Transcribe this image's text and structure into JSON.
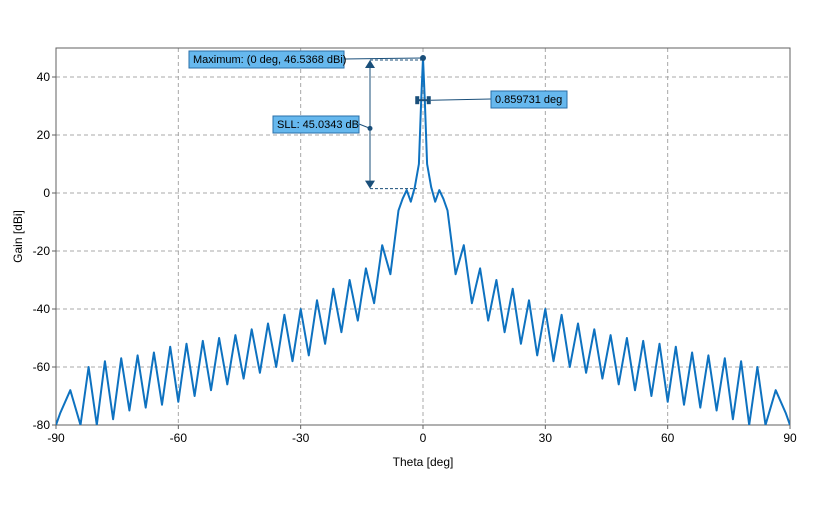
{
  "chart_data": {
    "type": "line",
    "title": "",
    "xlabel": "Theta [deg]",
    "ylabel": "Gain [dBi]",
    "xlim": [
      -90,
      90
    ],
    "ylim": [
      -80,
      50
    ],
    "xticks": [
      -90,
      -60,
      -30,
      0,
      30,
      60,
      90
    ],
    "yticks": [
      -80,
      -60,
      -40,
      -20,
      0,
      20,
      40
    ],
    "xtick_labels": [
      "-90",
      "-60",
      "-30",
      "0",
      "30",
      "60",
      "90"
    ],
    "ytick_labels": [
      "-80",
      "-60",
      "-40",
      "-20",
      "0",
      "20",
      "40"
    ],
    "grid": true,
    "line_color": "#0e72c0",
    "series": [
      {
        "x": [
          -90,
          -89,
          -86.5,
          -84,
          -82,
          -80,
          -78,
          -76,
          -74,
          -72,
          -70,
          -68,
          -66,
          -64,
          -62,
          -60,
          -58,
          -56,
          -54,
          -52,
          -50,
          -48,
          -46,
          -44,
          -42,
          -40,
          -38,
          -36,
          -34,
          -32,
          -30,
          -28,
          -26,
          -24,
          -22,
          -20,
          -18,
          -16,
          -14,
          -12,
          -10,
          -8,
          -6,
          -5,
          -4,
          -3,
          -2,
          -1,
          -0.43,
          0,
          0.43,
          1,
          2,
          3,
          4,
          5,
          6,
          8,
          10,
          12,
          14,
          16,
          18,
          20,
          22,
          24,
          26,
          28,
          30,
          32,
          34,
          36,
          38,
          40,
          42,
          44,
          46,
          48,
          50,
          52,
          54,
          56,
          58,
          60,
          62,
          64,
          66,
          68,
          70,
          72,
          74,
          76,
          78,
          80,
          82,
          84,
          86.5,
          89,
          90
        ],
        "values": [
          -80,
          -76,
          -68,
          -80,
          -60,
          -80,
          -58,
          -78,
          -57,
          -75,
          -56,
          -74,
          -55,
          -73,
          -53,
          -72,
          -52,
          -70,
          -51,
          -68,
          -50,
          -66,
          -49,
          -64,
          -47,
          -62,
          -45,
          -60,
          -42,
          -58,
          -40,
          -56,
          -37,
          -52,
          -33,
          -48,
          -30,
          -44,
          -26,
          -38,
          -18,
          -28,
          -6,
          -2,
          1,
          -3,
          2,
          10,
          32,
          46.5,
          32,
          10,
          2,
          -3,
          1,
          -2,
          -6,
          -28,
          -18,
          -38,
          -26,
          -44,
          -30,
          -48,
          -33,
          -52,
          -37,
          -56,
          -40,
          -58,
          -42,
          -60,
          -45,
          -62,
          -47,
          -64,
          -49,
          -66,
          -50,
          -68,
          -51,
          -70,
          -52,
          -72,
          -53,
          -73,
          -55,
          -74,
          -56,
          -75,
          -57,
          -78,
          -58,
          -80,
          -60,
          -80,
          -68,
          -76,
          -80
        ]
      }
    ],
    "annotations": {
      "maximum_label": "Maximum: (0 deg, 46.5368 dBi)",
      "sll_label": "SLL: 45.0343 dB",
      "beamwidth_label": "0.859731 deg",
      "max_point": [
        0,
        46.5368
      ],
      "sll_level": 1.5,
      "beamwidth_level": 32,
      "beamwidth_x": [
        -0.43,
        0.43
      ],
      "sll_marker_x": -13
    }
  }
}
